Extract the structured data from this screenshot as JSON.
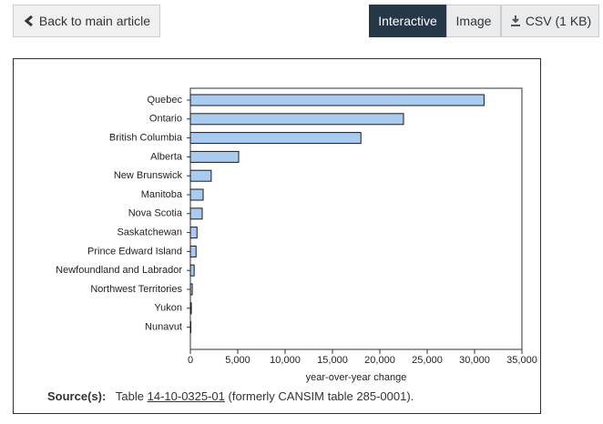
{
  "toolbar": {
    "back": "Back to main article",
    "tabs": [
      "Interactive",
      "Image",
      "CSV (1 KB)"
    ]
  },
  "chart_data": {
    "type": "bar",
    "orientation": "horizontal",
    "categories": [
      "Quebec",
      "Ontario",
      "British Columbia",
      "Alberta",
      "New Brunswick",
      "Manitoba",
      "Nova Scotia",
      "Saskatchewan",
      "Prince Edward Island",
      "Newfoundland and Labrador",
      "Northwest Territories",
      "Yukon",
      "Nunavut"
    ],
    "values": [
      31000,
      22500,
      18000,
      5100,
      2200,
      1350,
      1250,
      700,
      600,
      400,
      200,
      100,
      50
    ],
    "color": "#a9cbf0",
    "x_label": "year-over-year change",
    "xlim": [
      0,
      35000
    ],
    "xticks": [
      0,
      {
        "value": 5000,
        "label": "5,000"
      },
      {
        "value": 10000,
        "label": "10,000"
      },
      {
        "value": 15000,
        "label": "15,000"
      },
      {
        "value": 20000,
        "label": "20,000"
      },
      {
        "value": 25000,
        "label": "25,000"
      },
      {
        "value": 30000,
        "label": "30,000"
      },
      {
        "value": 35000,
        "label": "35,000"
      }
    ],
    "grid": false
  },
  "source": {
    "label": "Source(s):",
    "text_before": "Table",
    "link": "14-10-0325-01",
    "text_after": "(formerly CANSIM table 285-0001)."
  }
}
